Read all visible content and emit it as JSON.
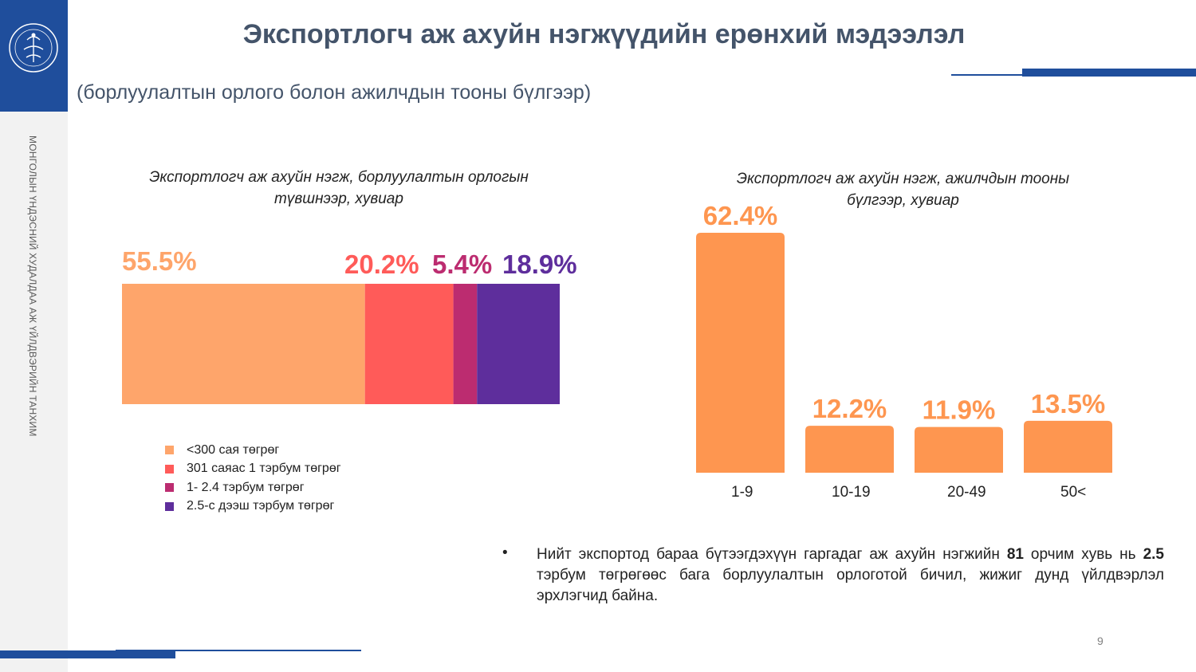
{
  "side_label": "МОНГОЛЫН ҮНДЭСНИЙ ХУДАЛДАА АЖ ҮЙЛДВЭРИЙН ТАНХИМ",
  "title": "Экспортлогч аж ахуйн нэгжүүдийн ерөнхий мэдээлэл",
  "subtitle": "(борлуулалтын орлого болон ажилчдын тооны бүлгээр)",
  "colors": {
    "brand_blue": "#1f4e9c",
    "title_text": "#44546a"
  },
  "chart_data": [
    {
      "type": "bar",
      "stacked": true,
      "orientation": "horizontal",
      "title_line1": "Экспортлогч аж ахуйн нэгж, борлуулалтын орлогын",
      "title_line2": "түвшнээр, хувиар",
      "series": [
        {
          "name": "<300 сая төгрөг",
          "value": 55.5,
          "label": "55.5%",
          "color": "#fea56b"
        },
        {
          "name": "301 саяас 1 тэрбум төгрөг",
          "value": 20.2,
          "label": "20.2%",
          "color": "#ff5b59"
        },
        {
          "name": "1- 2.4 тэрбум төгрөг",
          "value": 5.4,
          "label": "5.4%",
          "color": "#bc2c70"
        },
        {
          "name": "2.5-с дээш тэрбум төгрөг",
          "value": 18.9,
          "label": "18.9%",
          "color": "#5e2e9c"
        }
      ],
      "legend_position": "bottom-left"
    },
    {
      "type": "bar",
      "title_line1": "Экспортлогч аж ахуйн нэгж, ажилчдын тооны",
      "title_line2": "бүлгээр, хувиар",
      "categories": [
        "1-9",
        "10-19",
        "20-49",
        "50<"
      ],
      "values": [
        62.4,
        12.2,
        11.9,
        13.5
      ],
      "labels": [
        "62.4%",
        "12.2%",
        "11.9%",
        "13.5%"
      ],
      "color": "#fe9650"
    }
  ],
  "bullet": {
    "part1": "Нийт экспортод бараа бүтээгдэхүүн гаргадаг аж ахуйн нэгжийн ",
    "bold1": "81",
    "part2": " орчим хувь нь ",
    "bold2": "2.5",
    "part3": " тэрбум төгрөгөөс бага борлуулалтын орлоготой бичил, жижиг дунд үйлдвэрлэл эрхлэгчид байна."
  },
  "page_number": "9"
}
